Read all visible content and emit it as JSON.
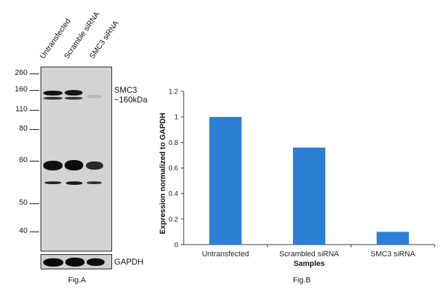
{
  "figA": {
    "lanes": [
      "Untransfected",
      "Scramble siRNA",
      "SMC3 siRNA"
    ],
    "mw_markers": [
      "260",
      "160",
      "110",
      "80",
      "60",
      "50",
      "40"
    ],
    "target_label_line1": "SMC3",
    "target_label_line2": "~160kDa",
    "loading_control": "GAPDH",
    "caption": "Fig.A"
  },
  "figB": {
    "caption": "Fig.B"
  },
  "chart_data": {
    "type": "bar",
    "categories": [
      "Untransfected",
      "Scrambled siRNA",
      "SMC3 siRNA"
    ],
    "values": [
      1.0,
      0.76,
      0.1
    ],
    "xlabel": "Samples",
    "ylabel": "Expression normalized to GAPDH",
    "ylim": [
      0,
      1.2
    ],
    "yticks": [
      "0",
      "0.2",
      "0.4",
      "0.6",
      "0.8",
      "1",
      "1.2"
    ],
    "bar_color": "#2b7fd4",
    "grid": false
  }
}
